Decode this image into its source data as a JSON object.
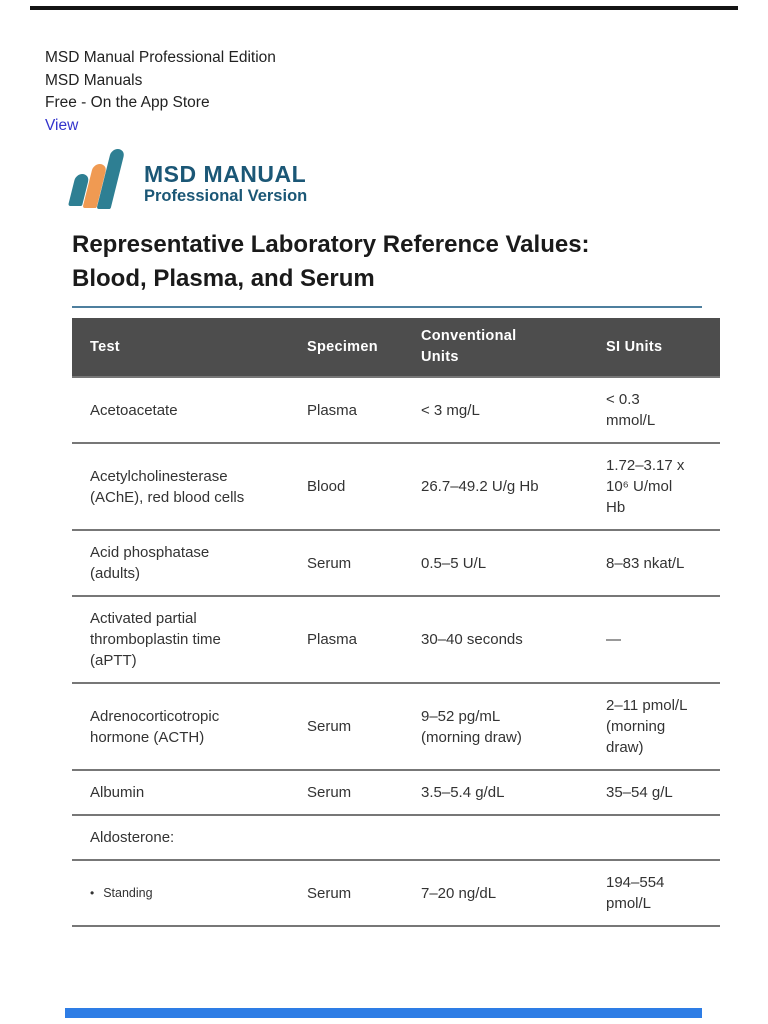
{
  "colors": {
    "brand_teal": "#2e7f93",
    "brand_orange": "#f09a52",
    "brand_text": "#1b5776",
    "title_rule": "#4e7f9e",
    "table_header_bg": "#4d4d4d",
    "link_blue": "#3333cc",
    "bottom_bar_blue": "#2e7de5"
  },
  "app_banner": {
    "title": "MSD Manual Professional Edition",
    "publisher": "MSD Manuals",
    "price": "Free - On the App Store",
    "link_label": "View"
  },
  "logo": {
    "name": "MSD MANUAL",
    "edition": "Professional Version",
    "mark_icon": "three-blades-logo-icon"
  },
  "page_title": "Representative Laboratory Reference Values:\nBlood, Plasma, and Serum",
  "table": {
    "headers": {
      "test": "Test",
      "specimen": "Specimen",
      "conventional": "Conventional\nUnits",
      "si": "SI Units"
    },
    "rows": [
      {
        "test": "Acetoacetate",
        "specimen": "Plasma",
        "conventional": "< 3 mg/L",
        "si": "< 0.3\nmmol/L"
      },
      {
        "test": "Acetylcholinesterase\n(AChE), red blood cells",
        "specimen": "Blood",
        "conventional": "26.7–49.2 U/g Hb",
        "si": "1.72–3.17 x\n10⁶ U/mol\nHb"
      },
      {
        "test": "Acid phosphatase\n(adults)",
        "specimen": "Serum",
        "conventional": "0.5–5 U/L",
        "si": "8–83 nkat/L"
      },
      {
        "test": "Activated partial\nthromboplastin time\n(aPTT)",
        "specimen": "Plasma",
        "conventional": "30–40 seconds",
        "si": "—"
      },
      {
        "test": "Adrenocorticotropic\nhormone (ACTH)",
        "specimen": "Serum",
        "conventional": "9–52 pg/mL\n(morning draw)",
        "si": "2–11 pmol/L\n(morning\ndraw)"
      },
      {
        "test": "Albumin",
        "specimen": "Serum",
        "conventional": "3.5–5.4 g/dL",
        "si": "35–54 g/L"
      },
      {
        "test": "Aldosterone:",
        "specimen": "",
        "conventional": "",
        "si": ""
      },
      {
        "bullet": "•",
        "test": "Standing",
        "specimen": "Serum",
        "conventional": "7–20 ng/dL",
        "si": "194–554\npmol/L"
      }
    ]
  }
}
